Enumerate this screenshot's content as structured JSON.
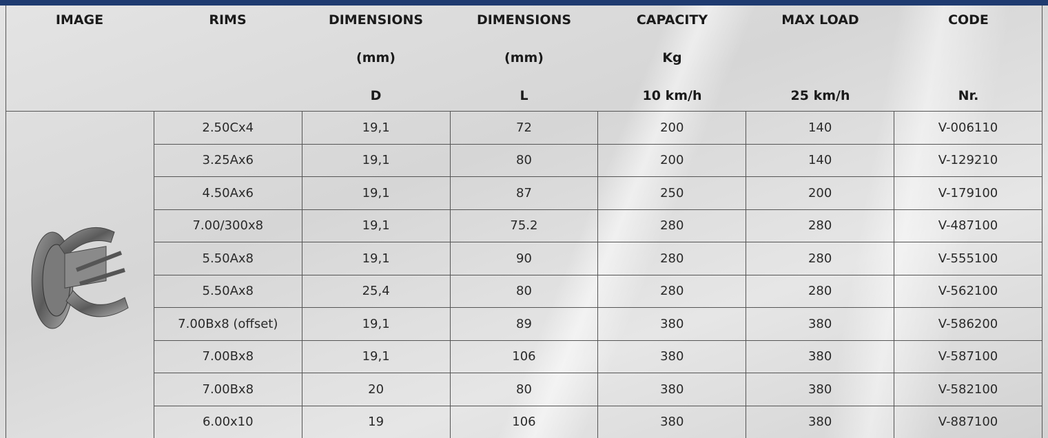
{
  "table": {
    "header": [
      [
        "IMAGE"
      ],
      [
        "RIMS"
      ],
      [
        "DIMENSIONS",
        "(mm)",
        "D"
      ],
      [
        "DIMENSIONS",
        "(mm)",
        "L"
      ],
      [
        "CAPACITY",
        "Kg",
        "10 km/h"
      ],
      [
        "MAX LOAD",
        "25 km/h"
      ],
      [
        "CODE",
        "Nr."
      ]
    ],
    "rows": [
      [
        "2.50Cx4",
        "19,1",
        "72",
        "200",
        "140",
        "V-006110"
      ],
      [
        "3.25Ax6",
        "19,1",
        "80",
        "200",
        "140",
        "V-129210"
      ],
      [
        "4.50Ax6",
        "19,1",
        "87",
        "250",
        "200",
        "V-179100"
      ],
      [
        "7.00/300x8",
        "19,1",
        "75.2",
        "280",
        "280",
        "V-487100"
      ],
      [
        "5.50Ax8",
        "19,1",
        "90",
        "280",
        "280",
        "V-555100"
      ],
      [
        "5.50Ax8",
        "25,4",
        "80",
        "280",
        "280",
        "V-562100"
      ],
      [
        "7.00Bx8 (offset)",
        "19,1",
        "89",
        "380",
        "380",
        "V-586200"
      ],
      [
        "7.00Bx8",
        "19,1",
        "106",
        "380",
        "380",
        "V-587100"
      ],
      [
        "7.00Bx8",
        "20",
        "80",
        "380",
        "380",
        "V-582100"
      ],
      [
        "6.00x10",
        "19",
        "106",
        "380",
        "380",
        "V-887100"
      ]
    ]
  }
}
